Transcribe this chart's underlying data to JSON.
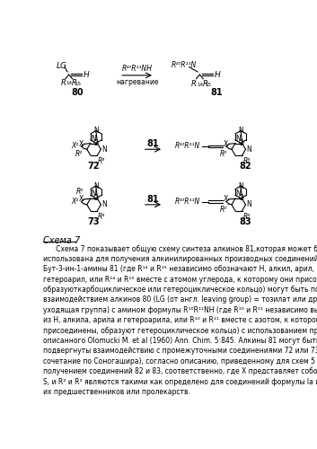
{
  "bg_color": "#ffffff",
  "fig_width": 3.53,
  "fig_height": 5.0,
  "dpi": 100,
  "schema_label": "Схема 7",
  "lines": [
    "      Схема 7 показывает общую схему синтеза алкинов 81,которая может быть",
    "использована для получения алкинилированных производных соединений 72 и 73.",
    "Бут-3-ин-1-амины 81 (где R¹⁴ и R¹⁵ независимо обозначают Н, алкил, арил,",
    "гетероарил, или R¹⁴ и R¹⁵ вместе с атомом углерода, к которому они присоединены,",
    "образуюткарбоциклическое или гетероциклическое кольцо) могут быть получены",
    "взаимодействием алкинов 80 (LG (от англ. leaving group) = тозилат или другая",
    "уходящая группа) с амином формулы R¹⁰R¹¹NH (где R¹⁰ и R¹¹ независимо выбраны",
    "из Н, алкила, арила и гетероарила, или R¹⁰ и R¹¹ вместе с азотом, к которому они",
    "присоединены, образуют гетероциклическое кольцо) с использованием протокола,",
    "описанного Olomucki M. et al (1960) Ann. Chim. 5:845. Алкины 81 могут быть затем",
    "подвергнуты взаимодействию с промежуточными соединениями 72 или 73 (через",
    "сочетание по Соногашира), согласно описанию, приведенному для схем 5 и 7 с",
    "получением соединений 82 и 83, соответственно, где Х представляет собой О или",
    "S, и R² и R³ являются такими как определено для соединений формулы Ia и Ib, или",
    "их предшественников или пролекарств."
  ]
}
